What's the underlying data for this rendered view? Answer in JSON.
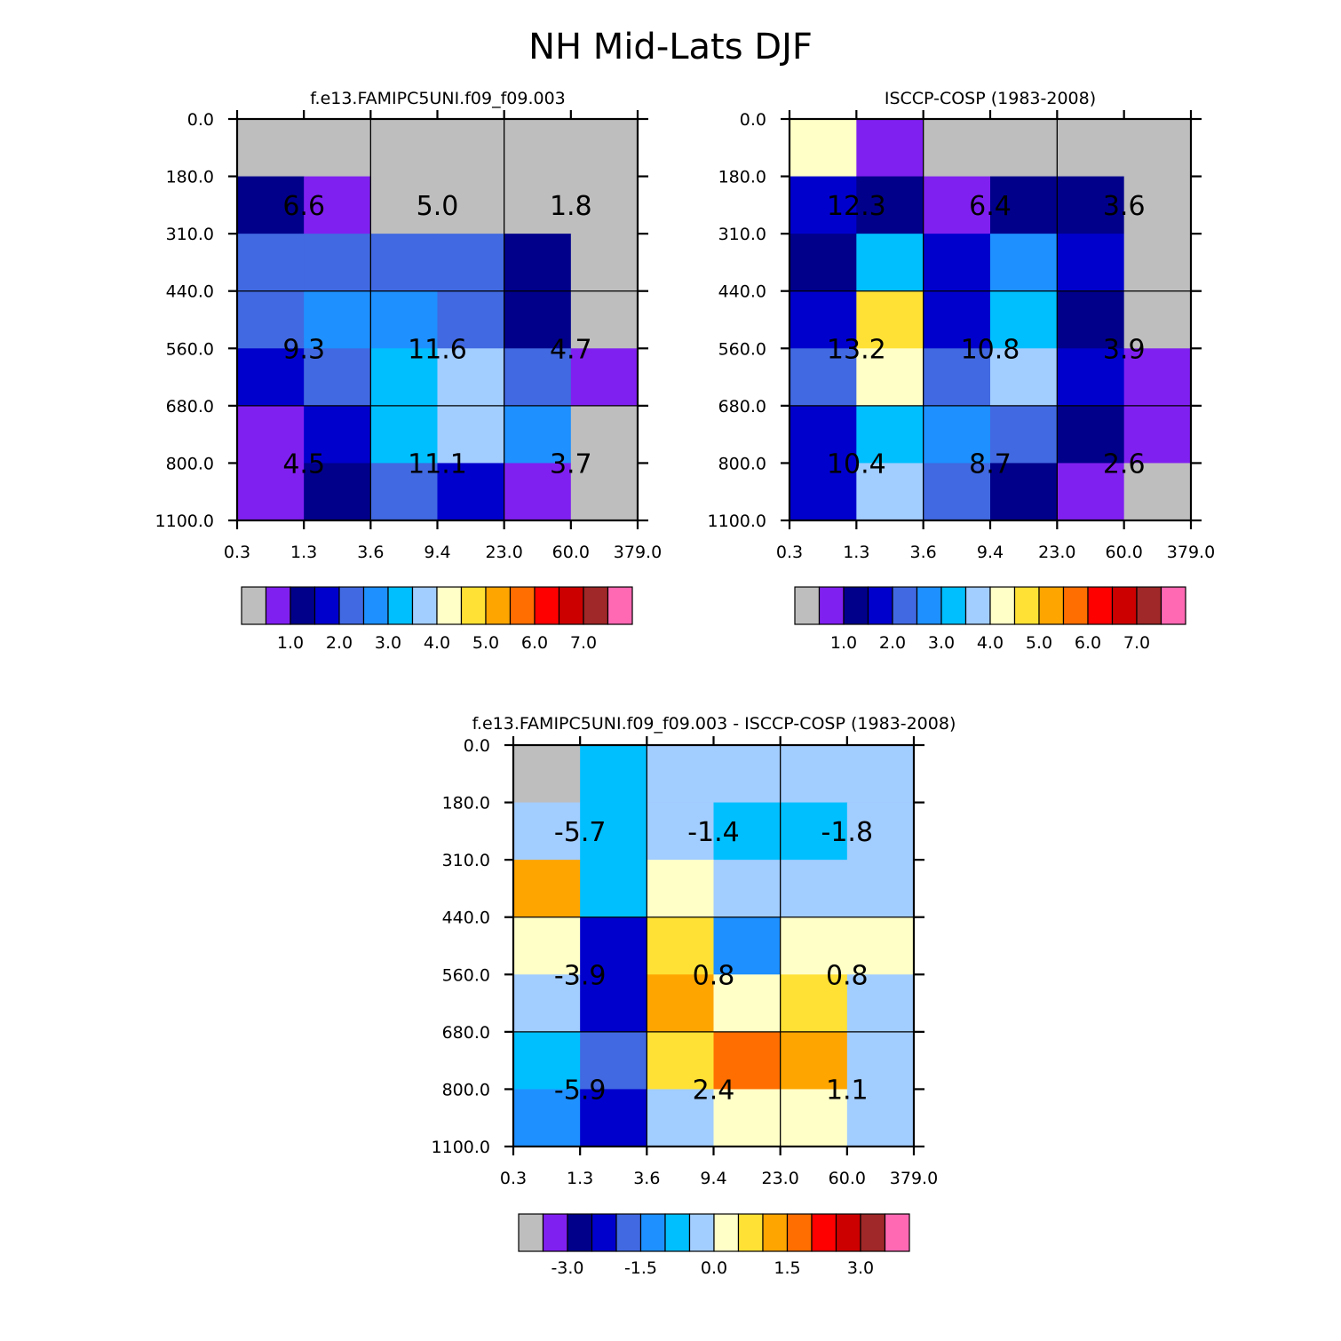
{
  "title": "NH Mid-Lats DJF",
  "palettes": {
    "abs": [
      "#bebebe",
      "#8020f0",
      "#00008b",
      "#0000cd",
      "#4169e1",
      "#1e90ff",
      "#00bfff",
      "#a2cdff",
      "#ffffc8",
      "#ffe135",
      "#ffa500",
      "#ff6e00",
      "#ff0000",
      "#cd0000",
      "#a02828",
      "#ff69b4"
    ],
    "diff": [
      "#bebebe",
      "#8020f0",
      "#00008b",
      "#0000cd",
      "#4169e1",
      "#1e90ff",
      "#00bfff",
      "#a2cdff",
      "#ffffc8",
      "#ffe135",
      "#ffa500",
      "#ff6e00",
      "#ff0000",
      "#cd0000",
      "#a02828",
      "#ff69b4"
    ]
  },
  "chart_data": [
    {
      "type": "heatmap",
      "id": "model",
      "title": "f.e13.FAMIPC5UNI.f09_f09.003",
      "x_ticks": [
        "0.3",
        "1.3",
        "3.6",
        "9.4",
        "23.0",
        "60.0",
        "379.0"
      ],
      "y_ticks": [
        "0.0",
        "180.0",
        "310.0",
        "440.0",
        "560.0",
        "680.0",
        "800.0",
        "1100.0"
      ],
      "cell_color_index": [
        [
          0,
          0,
          0,
          0,
          0,
          0
        ],
        [
          2,
          1,
          0,
          0,
          0,
          0
        ],
        [
          4,
          4,
          4,
          4,
          2,
          0
        ],
        [
          4,
          5,
          5,
          4,
          2,
          0
        ],
        [
          3,
          4,
          6,
          7,
          4,
          1
        ],
        [
          1,
          3,
          6,
          7,
          5,
          0
        ],
        [
          1,
          2,
          4,
          3,
          1,
          0
        ]
      ],
      "box_values": [
        "6.6",
        "5.0",
        "1.8",
        "9.3",
        "11.6",
        "4.7",
        "4.5",
        "11.1",
        "3.7"
      ],
      "colorbar": {
        "labels": [
          "1.0",
          "2.0",
          "3.0",
          "4.0",
          "5.0",
          "6.0",
          "7.0"
        ]
      }
    },
    {
      "type": "heatmap",
      "id": "obs",
      "title": "ISCCP-COSP (1983-2008)",
      "x_ticks": [
        "0.3",
        "1.3",
        "3.6",
        "9.4",
        "23.0",
        "60.0",
        "379.0"
      ],
      "y_ticks": [
        "0.0",
        "180.0",
        "310.0",
        "440.0",
        "560.0",
        "680.0",
        "800.0",
        "1100.0"
      ],
      "cell_color_index": [
        [
          8,
          1,
          0,
          0,
          0,
          0
        ],
        [
          3,
          2,
          1,
          2,
          2,
          0
        ],
        [
          2,
          6,
          3,
          5,
          3,
          0
        ],
        [
          3,
          9,
          3,
          6,
          2,
          0
        ],
        [
          4,
          8,
          4,
          7,
          3,
          1
        ],
        [
          3,
          6,
          5,
          4,
          2,
          1
        ],
        [
          3,
          7,
          4,
          2,
          1,
          0
        ]
      ],
      "box_values": [
        "12.3",
        "6.4",
        "3.6",
        "13.2",
        "10.8",
        "3.9",
        "10.4",
        "8.7",
        "2.6"
      ],
      "colorbar": {
        "labels": [
          "1.0",
          "2.0",
          "3.0",
          "4.0",
          "5.0",
          "6.0",
          "7.0"
        ]
      }
    },
    {
      "type": "heatmap",
      "id": "diff",
      "title": "f.e13.FAMIPC5UNI.f09_f09.003 - ISCCP-COSP (1983-2008)",
      "x_ticks": [
        "0.3",
        "1.3",
        "3.6",
        "9.4",
        "23.0",
        "60.0",
        "379.0"
      ],
      "y_ticks": [
        "0.0",
        "180.0",
        "310.0",
        "440.0",
        "560.0",
        "680.0",
        "800.0",
        "1100.0"
      ],
      "cell_color_index": [
        [
          0,
          6,
          7,
          7,
          7,
          7
        ],
        [
          7,
          6,
          7,
          6,
          6,
          7
        ],
        [
          10,
          6,
          8,
          7,
          7,
          7
        ],
        [
          8,
          3,
          9,
          5,
          8,
          8
        ],
        [
          7,
          3,
          10,
          8,
          9,
          7
        ],
        [
          6,
          4,
          9,
          11,
          10,
          7
        ],
        [
          5,
          3,
          7,
          8,
          8,
          7
        ]
      ],
      "box_values": [
        "-5.7",
        "-1.4",
        "-1.8",
        "-3.9",
        "0.8",
        "0.8",
        "-5.9",
        "2.4",
        "1.1"
      ],
      "colorbar": {
        "labels": [
          "-3.0",
          "-1.5",
          "0.0",
          "1.5",
          "3.0"
        ]
      }
    }
  ]
}
